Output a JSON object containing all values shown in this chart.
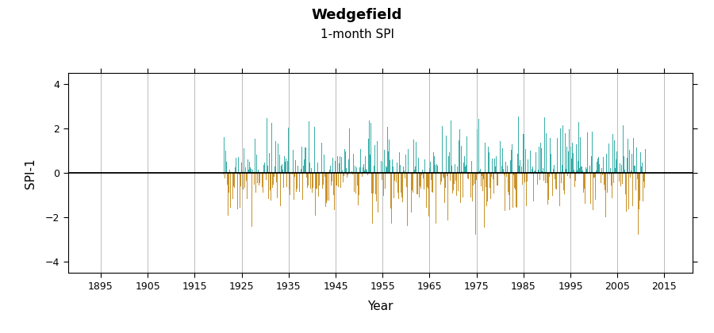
{
  "title": "Wedgefield",
  "subtitle": "1-month SPI",
  "xlabel": "Year",
  "ylabel": "SPI-1",
  "ylim": [
    -4.5,
    4.5
  ],
  "xlim": [
    1888,
    2021
  ],
  "yticks": [
    -4,
    -2,
    0,
    2,
    4
  ],
  "xticks": [
    1895,
    1905,
    1915,
    1925,
    1935,
    1945,
    1955,
    1965,
    1975,
    1985,
    1995,
    2005,
    2015
  ],
  "data_start_year": 1921,
  "data_end_year": 2011,
  "color_positive": "#3aafa9",
  "color_negative": "#c8922a",
  "background_color": "#ffffff",
  "grid_color": "#bbbbbb",
  "zero_line_color": "#000000",
  "seed": 42,
  "title_fontsize": 13,
  "subtitle_fontsize": 11,
  "axis_label_fontsize": 11,
  "tick_fontsize": 9,
  "tick_color": "#000000"
}
